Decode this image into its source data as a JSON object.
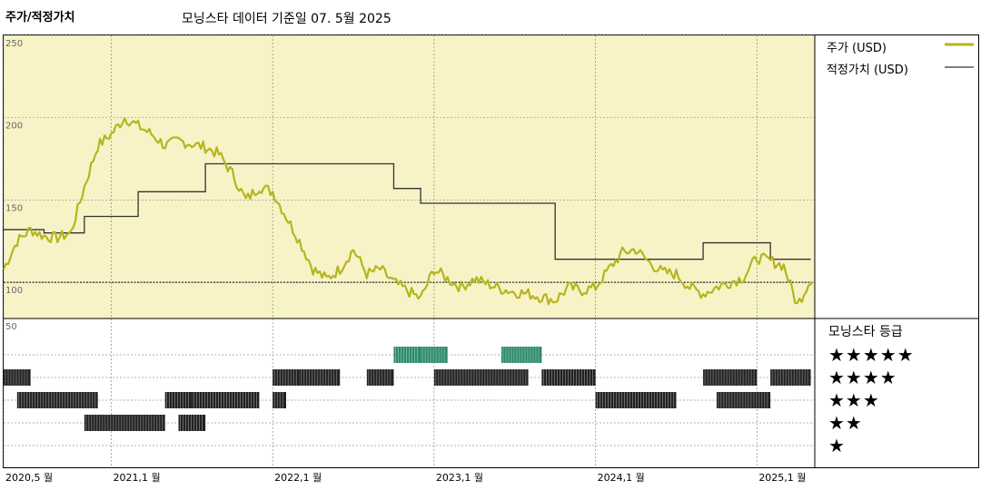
{
  "header": {
    "title": "주가/적정가치",
    "subtitle": "모닝스타 데이터 기준일 07. 5월 2025"
  },
  "legend": {
    "price_label": "주가 (USD)",
    "fair_label": "적정가치 (USD)",
    "rating_title": "모닝스타 등급"
  },
  "colors": {
    "price": "#b5b520",
    "fair": "#333333",
    "plot_bg": "#f8f3c6",
    "green_bar": "#2e8b6a",
    "black_bar": "#222222"
  },
  "stars": [
    "★★★★★",
    "★★★★",
    "★★★",
    "★★",
    "★"
  ],
  "chart_data": {
    "type": "line",
    "title": "주가/적정가치",
    "x_tick_labels": [
      "2020,5 월",
      "2021,1 월",
      "2022,1 월",
      "2023,1 월",
      "2024,1 월",
      "2025,1 월"
    ],
    "x_tick_dates": [
      "2020-05",
      "2021-01",
      "2022-01",
      "2023-01",
      "2024-01",
      "2025-01"
    ],
    "y_ticks": [
      100,
      150,
      200,
      250
    ],
    "ylim": [
      78,
      250
    ],
    "reference_line": 100,
    "series": [
      {
        "name": "주가 (USD)",
        "dates": [
          "2020-05",
          "2020-06",
          "2020-07",
          "2020-08",
          "2020-09",
          "2020-10",
          "2020-11",
          "2020-12",
          "2021-01",
          "2021-02",
          "2021-03",
          "2021-04",
          "2021-05",
          "2021-06",
          "2021-07",
          "2021-08",
          "2021-09",
          "2021-10",
          "2021-11",
          "2021-12",
          "2022-01",
          "2022-02",
          "2022-03",
          "2022-04",
          "2022-05",
          "2022-06",
          "2022-07",
          "2022-08",
          "2022-09",
          "2022-10",
          "2022-11",
          "2022-12",
          "2023-01",
          "2023-02",
          "2023-03",
          "2023-04",
          "2023-05",
          "2023-06",
          "2023-07",
          "2023-08",
          "2023-09",
          "2023-10",
          "2023-11",
          "2023-12",
          "2024-01",
          "2024-02",
          "2024-03",
          "2024-04",
          "2024-05",
          "2024-06",
          "2024-07",
          "2024-08",
          "2024-09",
          "2024-10",
          "2024-11",
          "2024-12",
          "2025-01",
          "2025-02",
          "2025-03",
          "2025-04",
          "2025-05"
        ],
        "values": [
          108,
          125,
          132,
          128,
          127,
          130,
          158,
          183,
          190,
          200,
          195,
          190,
          183,
          186,
          184,
          182,
          178,
          166,
          150,
          158,
          155,
          140,
          125,
          108,
          102,
          108,
          120,
          105,
          108,
          100,
          95,
          90,
          108,
          102,
          97,
          102,
          99,
          96,
          94,
          93,
          91,
          89,
          97,
          95,
          97,
          108,
          118,
          120,
          112,
          106,
          105,
          97,
          93,
          97,
          100,
          103,
          115,
          113,
          110,
          86,
          102
        ]
      },
      {
        "name": "적정가치 (USD)",
        "step_dates": [
          "2020-05",
          "2020-08",
          "2020-11",
          "2021-03",
          "2021-08",
          "2022-10",
          "2022-12",
          "2023-10",
          "2024-09",
          "2025-02",
          "2025-05"
        ],
        "step_values": [
          132,
          130,
          140,
          155,
          172,
          157,
          148,
          114,
          124,
          114,
          114
        ]
      }
    ],
    "rating_bars": [
      {
        "stars": 5,
        "periods": [
          [
            "2022-10",
            "2022-11"
          ],
          [
            "2022-12",
            "2023-01"
          ],
          [
            "2023-06",
            "2023-08"
          ]
        ]
      },
      {
        "stars": 4,
        "periods": [
          [
            "2020-05",
            "2020-06"
          ],
          [
            "2022-01",
            "2022-02"
          ],
          [
            "2022-03",
            "2022-05"
          ],
          [
            "2022-08",
            "2022-09"
          ],
          [
            "2023-01",
            "2023-07"
          ],
          [
            "2023-09",
            "2023-12"
          ],
          [
            "2024-09",
            "2024-12"
          ],
          [
            "2025-02",
            "2025-04"
          ]
        ]
      },
      {
        "stars": 3,
        "periods": [
          [
            "2020-06",
            "2020-11"
          ],
          [
            "2021-05",
            "2021-06"
          ],
          [
            "2021-07",
            "2021-11"
          ],
          [
            "2022-01",
            "2022-01"
          ],
          [
            "2024-01",
            "2024-06"
          ],
          [
            "2024-10",
            "2025-01"
          ]
        ]
      },
      {
        "stars": 2,
        "periods": [
          [
            "2020-11",
            "2021-04"
          ],
          [
            "2021-06",
            "2021-07"
          ]
        ]
      }
    ]
  }
}
